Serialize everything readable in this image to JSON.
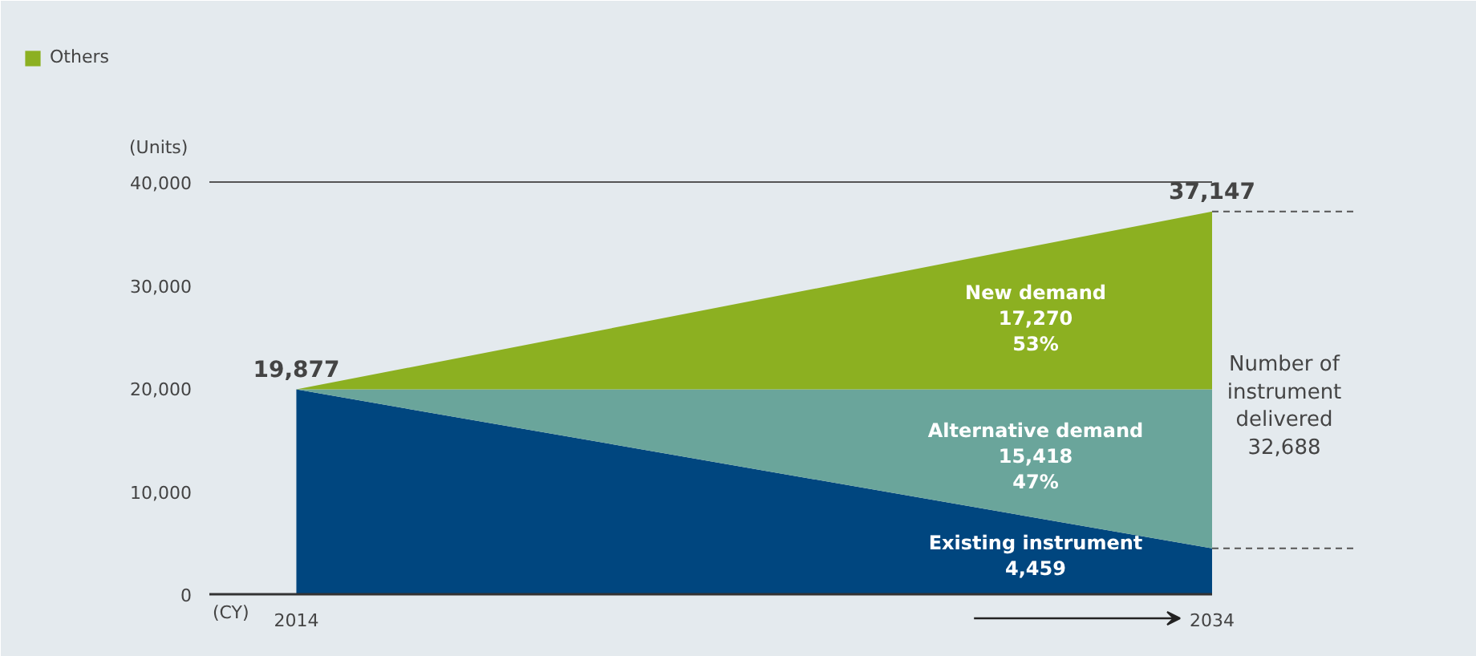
{
  "chart_data": {
    "type": "area",
    "stacked": true,
    "x": [
      2014,
      2034
    ],
    "xlim": [
      2012.1,
      2034
    ],
    "xticks": [
      2014,
      2034
    ],
    "ylim": [
      0,
      40000
    ],
    "yticks": [
      {
        "value": 0,
        "label": "0"
      },
      {
        "value": 10000,
        "label": "10,000"
      },
      {
        "value": 20000,
        "label": "20,000"
      },
      {
        "value": 30000,
        "label": "30,000"
      },
      {
        "value": 40000,
        "label": "40,000"
      }
    ],
    "xlabel": "(CY)",
    "ylabel": "(Units)",
    "grid": false,
    "legend": "top left",
    "series": [
      {
        "color": "#00467f",
        "values": [
          19877,
          4459
        ]
      },
      {
        "color": "#6aa59b",
        "values": [
          0,
          15418
        ]
      },
      {
        "name": "Others",
        "color": "#8cb021",
        "values": [
          0,
          17270
        ]
      }
    ],
    "ref_lines": [
      {
        "axis": "y",
        "value": 40000,
        "color": "#555555",
        "line_style": "solid"
      }
    ],
    "annotations": [
      {
        "text": "19,877",
        "x": 2014,
        "y": 19877
      },
      {
        "text": "37,147",
        "x": 2034,
        "y": 37147
      },
      "New demand\n17,270\n53%",
      "Alternative demand\n15,418\n47%",
      "Existing instrument\n4,459",
      "Number of\ninstrument\ndelivered\n32,688"
    ]
  }
}
